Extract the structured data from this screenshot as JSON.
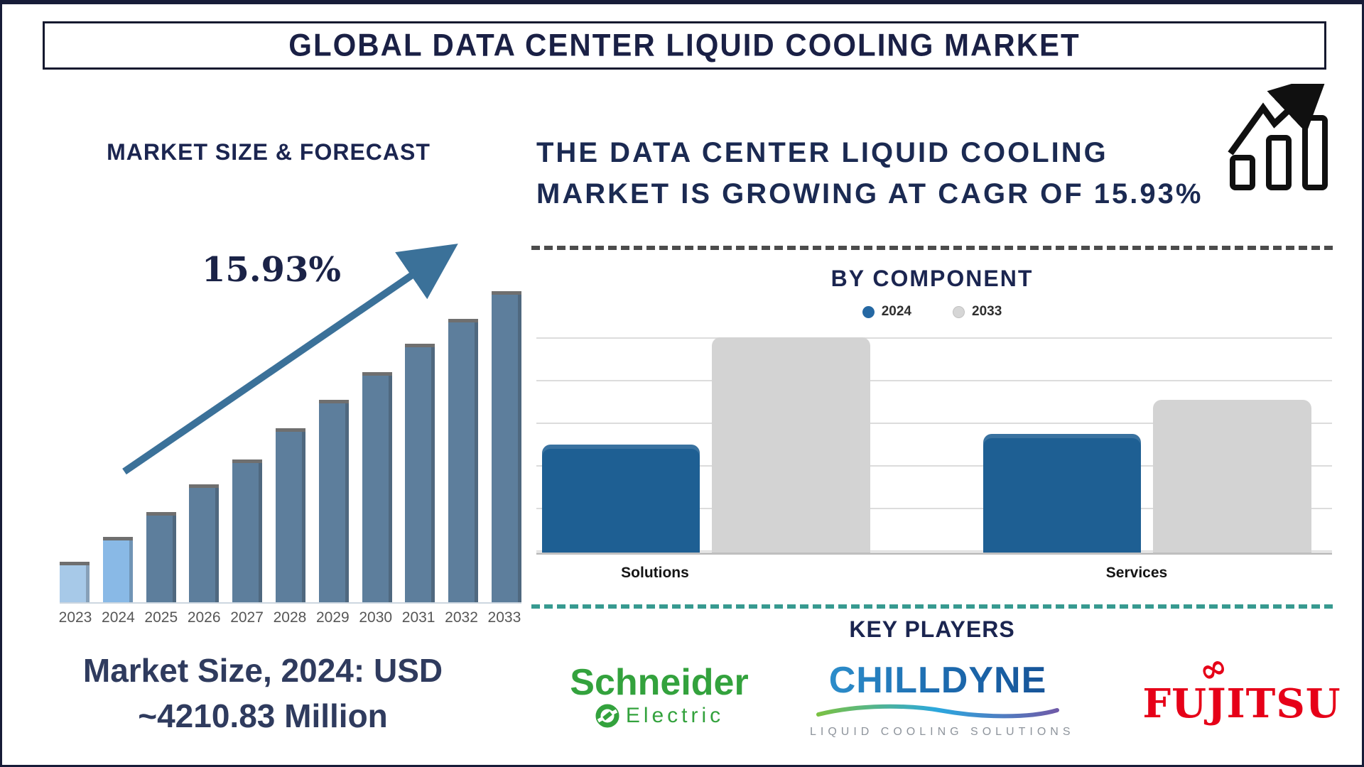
{
  "page": {
    "title": "GLOBAL DATA CENTER LIQUID COOLING MARKET"
  },
  "left": {
    "heading": "MARKET SIZE & FORECAST",
    "cagr_label": "15.93%",
    "caption_line1": "Market Size, 2024: USD",
    "caption_line2": "~4210.83 Million"
  },
  "right": {
    "growth_line1": "THE DATA CENTER LIQUID COOLING",
    "growth_line2": "MARKET IS GROWING AT CAGR OF 15.93%",
    "growth_icon": "rising-bars-with-arrow-icon",
    "by_component": {
      "heading": "BY COMPONENT",
      "legend": [
        {
          "label": "2024",
          "color": "#2568a3"
        },
        {
          "label": "2033",
          "color": "#d6d6d6"
        }
      ]
    },
    "key_players": {
      "heading": "KEY PLAYERS",
      "players": [
        {
          "name": "Schneider Electric",
          "word1": "Schneider",
          "word2": "Electric",
          "brand_color": "#33a23d"
        },
        {
          "name": "Chilldyne",
          "wordmark": "CHILLDYNE",
          "tagline": "LIQUID COOLING SOLUTIONS",
          "brand_color": "#1e6eb5"
        },
        {
          "name": "Fujitsu",
          "wordmark": "FUJITSU",
          "infinity_mark": "∞",
          "brand_color": "#e60018"
        }
      ]
    }
  },
  "chart_data": [
    {
      "type": "bar",
      "title": "MARKET SIZE & FORECAST",
      "x": [
        "2023",
        "2024",
        "2025",
        "2026",
        "2027",
        "2028",
        "2029",
        "2030",
        "2031",
        "2032",
        "2033"
      ],
      "values_relative": [
        13,
        21,
        29,
        38,
        46,
        56,
        65,
        74,
        83,
        91,
        100
      ],
      "value_axis_shown": false,
      "known_values": {
        "year": "2024",
        "value_usd_million": 4210.83
      },
      "cagr": "15.93%",
      "annotations": [
        "15.93%",
        "Market Size, 2024: USD ~4210.83 Million"
      ],
      "grid": false,
      "legend_position": "none"
    },
    {
      "type": "bar",
      "title": "BY COMPONENT",
      "categories": [
        "Solutions",
        "Services"
      ],
      "series": [
        {
          "name": "2024",
          "values_relative": [
            50,
            55
          ]
        },
        {
          "name": "2033",
          "values_relative": [
            100,
            71
          ]
        }
      ],
      "value_axis_shown": false,
      "grid": true,
      "legend_position": "top"
    }
  ],
  "colors": {
    "navy_text": "#1b2550",
    "forecast_2023": "#a7c9e8",
    "forecast_2024": "#89b9e6",
    "forecast_rest": "#5d7e9c",
    "forecast_arrow": "#3b7199",
    "component_2024": "#1e5f93",
    "component_2033": "#d3d3d3",
    "dashed_separator_top": "#4c4c4c",
    "dashed_separator_bottom": "#379a90",
    "caption_text": "#2f3b5e",
    "year_label": "#565656"
  }
}
